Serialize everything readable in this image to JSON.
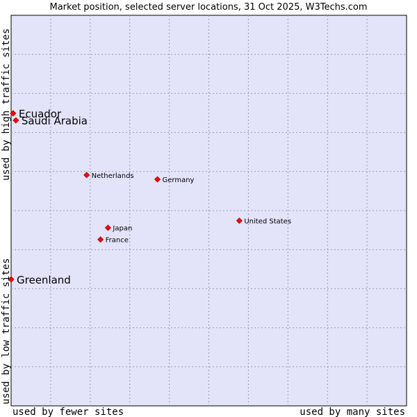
{
  "chart_data": {
    "type": "scatter",
    "title": "Market position, selected server locations, 31 Oct 2025, W3Techs.com",
    "xlabel_left": "used by fewer sites",
    "xlabel_right": "used by many sites",
    "ylabel_bottom": "used by low traffic sites",
    "ylabel_top": "used by high traffic sites",
    "xlim": [
      0,
      10
    ],
    "ylim": [
      0,
      10
    ],
    "grid": true,
    "colors": {
      "plot_background": "#e3e4f9",
      "grid": "#9a9ab4",
      "marker": "#ff0000",
      "marker_edge": "#aa0000"
    },
    "points": [
      {
        "name": "Ecuador",
        "x": 0.05,
        "y": 7.49,
        "size": "large"
      },
      {
        "name": "Saudi Arabia",
        "x": 0.12,
        "y": 7.31,
        "size": "large"
      },
      {
        "name": "Netherlands",
        "x": 1.91,
        "y": 5.91,
        "size": "small"
      },
      {
        "name": "Germany",
        "x": 3.7,
        "y": 5.8,
        "size": "small"
      },
      {
        "name": "United States",
        "x": 5.77,
        "y": 4.74,
        "size": "small"
      },
      {
        "name": "Japan",
        "x": 2.45,
        "y": 4.56,
        "size": "small"
      },
      {
        "name": "France",
        "x": 2.26,
        "y": 4.26,
        "size": "small"
      },
      {
        "name": "Greenland",
        "x": 0.0,
        "y": 3.24,
        "size": "large"
      }
    ]
  }
}
